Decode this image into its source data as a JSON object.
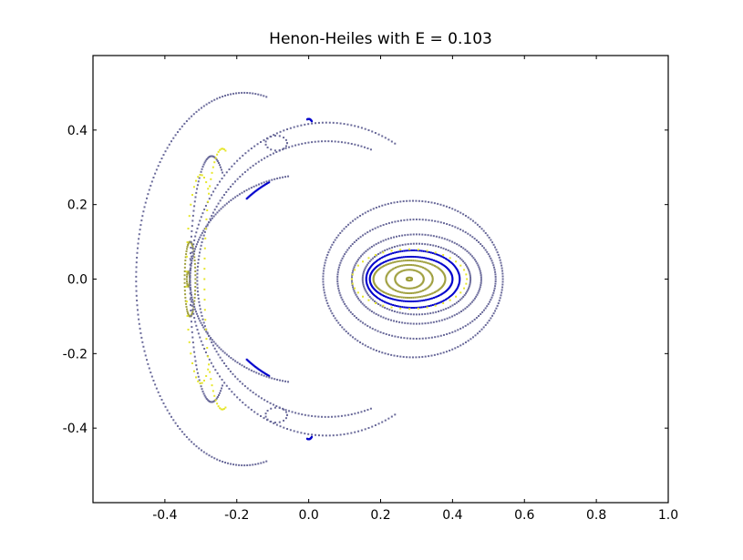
{
  "chart_data": {
    "type": "scatter",
    "title": "Henon-Heiles with E = 0.103",
    "xlabel": "",
    "ylabel": "",
    "xlim": [
      -0.6,
      1.0
    ],
    "ylim": [
      -0.6,
      0.6
    ],
    "xticks": [
      -0.4,
      -0.2,
      0.0,
      0.2,
      0.4,
      0.6,
      0.8,
      1.0
    ],
    "xtick_labels": [
      "-0.4",
      "-0.2",
      "0.0",
      "0.2",
      "0.4",
      "0.6",
      "0.8",
      "1.0"
    ],
    "yticks": [
      -0.4,
      -0.2,
      0.0,
      0.2,
      0.4
    ],
    "ytick_labels": [
      "-0.4",
      "-0.2",
      "0.0",
      "0.2",
      "0.4"
    ],
    "grid": false,
    "legend": false,
    "colors": {
      "blue": "#0000cc",
      "slate": "#6a6a9a",
      "olive": "#a0a040",
      "yellow": "#e6e62a"
    },
    "series": [
      {
        "color": "olive",
        "orbits": [
          {
            "kind": "ellipse",
            "center": [
              0.28,
              0.0
            ],
            "radii": [
              0.0075,
              0.004
            ],
            "points": 30
          },
          {
            "kind": "ellipse",
            "center": [
              0.28,
              0.0
            ],
            "radii": [
              0.04,
              0.025
            ],
            "points": 60
          },
          {
            "kind": "ellipse",
            "center": [
              0.28,
              0.0
            ],
            "radii": [
              0.065,
              0.038
            ],
            "points": 80
          },
          {
            "kind": "ellipse",
            "center": [
              0.28,
              0.0
            ],
            "radii": [
              0.1,
              0.05
            ],
            "points": 120
          },
          {
            "kind": "ellipse",
            "center": [
              -0.335,
              0.0
            ],
            "radii": [
              0.004,
              0.02
            ],
            "points": 20
          },
          {
            "kind": "ellipse",
            "center": [
              -0.33,
              0.0
            ],
            "radii": [
              0.015,
              0.1
            ],
            "points": 60
          }
        ]
      },
      {
        "color": "blue",
        "orbits": [
          {
            "kind": "ellipse",
            "center": [
              0.285,
              0.0
            ],
            "radii": [
              0.115,
              0.06
            ],
            "points": 140
          },
          {
            "kind": "ellipse",
            "center": [
              0.29,
              0.0
            ],
            "radii": [
              0.13,
              0.077
            ],
            "points": 150
          },
          {
            "kind": "arc",
            "center": [
              0.05,
              0.0
            ],
            "radii": [
              0.32,
              0.3
            ],
            "from": 120,
            "to": 134,
            "points": 25
          },
          {
            "kind": "arc",
            "center": [
              0.05,
              0.0
            ],
            "radii": [
              0.32,
              0.3
            ],
            "from": 226,
            "to": 240,
            "points": 25
          },
          {
            "kind": "arc",
            "center": [
              -0.0,
              0.0
            ],
            "radii": [
              0.05,
              0.43
            ],
            "from": 80,
            "to": 95,
            "points": 12
          },
          {
            "kind": "arc",
            "center": [
              -0.0,
              0.0
            ],
            "radii": [
              0.05,
              0.43
            ],
            "from": 265,
            "to": 280,
            "points": 12
          }
        ]
      },
      {
        "color": "slate",
        "orbits": [
          {
            "kind": "ellipse",
            "center": [
              0.3,
              0.0
            ],
            "radii": [
              0.15,
              0.095
            ],
            "points": 120
          },
          {
            "kind": "ellipse",
            "center": [
              0.3,
              0.0
            ],
            "radii": [
              0.18,
              0.12
            ],
            "points": 140
          },
          {
            "kind": "ellipse",
            "center": [
              0.3,
              0.0
            ],
            "radii": [
              0.22,
              0.16
            ],
            "points": 160
          },
          {
            "kind": "ellipse",
            "center": [
              0.29,
              0.0
            ],
            "radii": [
              0.25,
              0.21
            ],
            "points": 180
          },
          {
            "kind": "arc",
            "center": [
              0.0,
              0.0
            ],
            "radii": [
              0.33,
              0.28
            ],
            "from": 100,
            "to": 260,
            "points": 120
          },
          {
            "kind": "arc",
            "center": [
              0.05,
              0.0
            ],
            "radii": [
              0.36,
              0.37
            ],
            "from": 70,
            "to": 290,
            "points": 150
          },
          {
            "kind": "arc",
            "center": [
              0.05,
              0.0
            ],
            "radii": [
              0.38,
              0.42
            ],
            "from": 60,
            "to": 300,
            "points": 160
          },
          {
            "kind": "arc",
            "center": [
              -0.27,
              0.0
            ],
            "radii": [
              0.06,
              0.33
            ],
            "from": 60,
            "to": 300,
            "points": 90
          },
          {
            "kind": "arc",
            "center": [
              -0.09,
              0.365
            ],
            "radii": [
              0.03,
              0.02
            ],
            "from": 0,
            "to": 360,
            "points": 16
          },
          {
            "kind": "arc",
            "center": [
              -0.09,
              -0.365
            ],
            "radii": [
              0.03,
              0.02
            ],
            "from": 0,
            "to": 360,
            "points": 16
          },
          {
            "kind": "arc",
            "center": [
              -0.18,
              0.0
            ],
            "radii": [
              0.3,
              0.5
            ],
            "from": 78,
            "to": 282,
            "points": 140
          }
        ]
      },
      {
        "color": "yellow",
        "orbits": [
          {
            "kind": "ellipse",
            "center": [
              0.28,
              0.0
            ],
            "radii": [
              0.16,
              0.08
            ],
            "points": 40
          },
          {
            "kind": "arc",
            "center": [
              -0.24,
              0.0
            ],
            "radii": [
              0.05,
              0.35
            ],
            "from": 80,
            "to": 280,
            "points": 45
          },
          {
            "kind": "arc",
            "center": [
              -0.3,
              0.0
            ],
            "radii": [
              0.04,
              0.28
            ],
            "from": 60,
            "to": 300,
            "points": 30
          }
        ]
      }
    ]
  }
}
